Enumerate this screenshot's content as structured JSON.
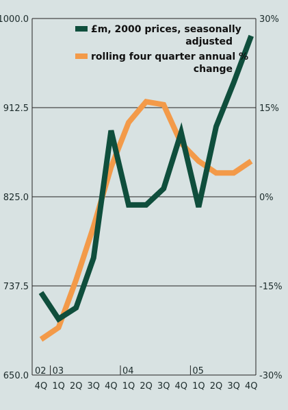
{
  "chart_data": {
    "type": "line",
    "categories": [
      "4Q",
      "1Q",
      "2Q",
      "3Q",
      "4Q",
      "1Q",
      "2Q",
      "3Q",
      "4Q",
      "1Q",
      "2Q",
      "3Q",
      "4Q"
    ],
    "year_labels": [
      {
        "label": "02",
        "index": 0
      },
      {
        "label": "03",
        "index": 1
      },
      {
        "label": "04",
        "index": 5
      },
      {
        "label": "05",
        "index": 9
      }
    ],
    "left_axis": {
      "ticks": [
        "650.0",
        "737.5",
        "825.0",
        "912.5",
        "1000.0"
      ],
      "ylim": [
        650,
        1000
      ]
    },
    "right_axis": {
      "ticks": [
        "-30%",
        "-15%",
        "0%",
        "15%",
        "30%"
      ],
      "ylim": [
        -30,
        30
      ]
    },
    "grid": true,
    "legend_position": "top-right",
    "series": [
      {
        "name": "£m, 2000 prices, seasonally adjusted",
        "legend_lines": [
          "£m, 2000 prices, seasonally",
          "adjusted"
        ],
        "axis": "left",
        "color": "#0f4e3c",
        "values": [
          731,
          705,
          716,
          765,
          890,
          817,
          817,
          833,
          888,
          815,
          894,
          937,
          983
        ]
      },
      {
        "name": "rolling four quarter annual % change",
        "legend_lines": [
          "rolling four quarter annual %",
          "change"
        ],
        "axis": "right",
        "color": "#f39a49",
        "values": [
          -24,
          -22,
          -14,
          -5,
          5,
          12.5,
          16,
          15.5,
          9,
          6,
          4,
          4,
          6
        ]
      }
    ]
  }
}
